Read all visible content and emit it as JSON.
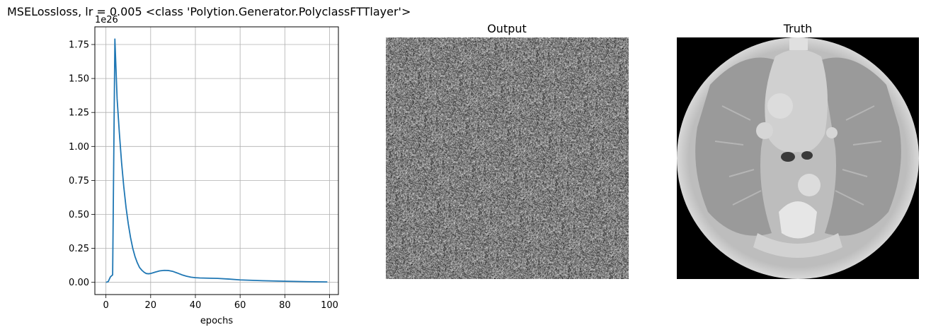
{
  "figure": {
    "loss_title": "MSELossloss, lr = 0.005 <class 'Polytion.Generator.PolyclassFTTlayer'>",
    "output_title": "Output",
    "truth_title": "Truth"
  },
  "chart_data": [
    {
      "type": "line",
      "title": "MSELossloss, lr = 0.005 <class 'Polytion.Generator.PolyclassFTTlayer'>",
      "xlabel": "epochs",
      "ylabel": "",
      "y_offset_text": "1e26",
      "y_scale_multiplier": "1e26",
      "xlim": [
        -4.95,
        103.95
      ],
      "ylim": [
        -0.09,
        1.88
      ],
      "xticks": [
        0,
        20,
        40,
        60,
        80,
        100
      ],
      "yticks": [
        0.0,
        0.25,
        0.5,
        0.75,
        1.0,
        1.25,
        1.5,
        1.75
      ],
      "xtick_labels": [
        "0",
        "20",
        "40",
        "60",
        "80",
        "100"
      ],
      "ytick_labels": [
        "0.00",
        "0.25",
        "0.50",
        "0.75",
        "1.00",
        "1.25",
        "1.50",
        "1.75"
      ],
      "grid": true,
      "color": "#1f77b4",
      "series": [
        {
          "x": [
            0,
            1,
            2,
            3,
            4,
            5,
            6,
            7,
            8,
            9,
            10,
            11,
            12,
            13,
            14,
            15,
            16,
            17,
            18,
            19,
            20,
            21,
            22,
            24,
            26,
            28,
            30,
            32,
            34,
            36,
            38,
            40,
            42,
            45,
            50,
            55,
            60,
            70,
            80,
            90,
            99
          ],
          "y": [
            0.0,
            0.005,
            0.04,
            0.055,
            1.79,
            1.35,
            1.1,
            0.88,
            0.7,
            0.55,
            0.43,
            0.33,
            0.25,
            0.19,
            0.145,
            0.11,
            0.09,
            0.075,
            0.065,
            0.063,
            0.065,
            0.07,
            0.075,
            0.084,
            0.088,
            0.087,
            0.08,
            0.068,
            0.055,
            0.045,
            0.038,
            0.034,
            0.032,
            0.031,
            0.029,
            0.024,
            0.018,
            0.012,
            0.008,
            0.005,
            0.003
          ]
        }
      ]
    }
  ]
}
